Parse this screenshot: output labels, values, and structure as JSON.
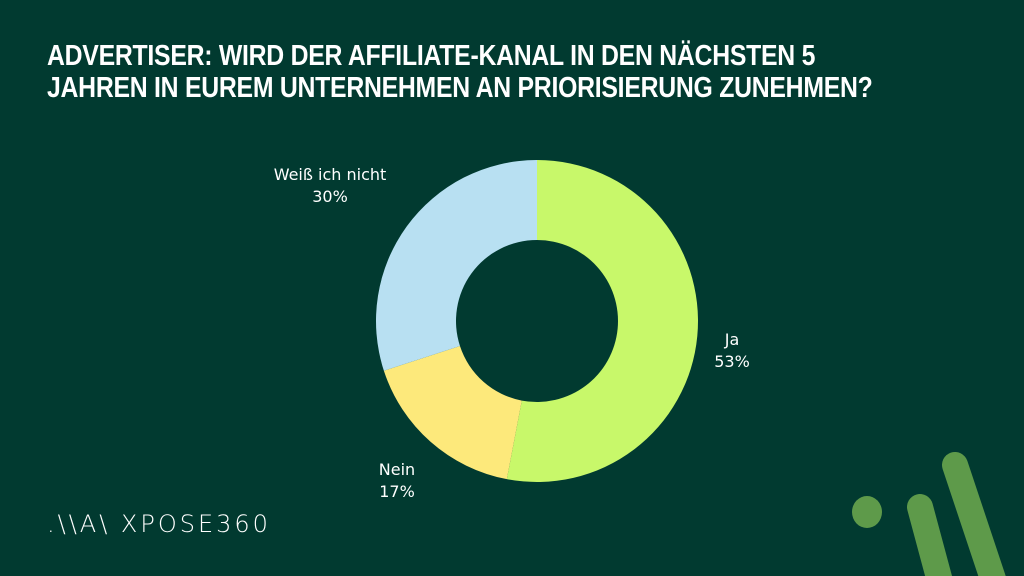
{
  "title_lines": [
    "ADVERTISER: WIRD DER AFFILIATE-KANAL IN DEN NÄCHSTEN 5",
    "JAHREN IN EUREM UNTERNEHMEN AN PRIORISIERUNG ZUNEHMEN?"
  ],
  "logo": ".\\\\A\\ XPOSE360",
  "colors": {
    "background": "#013a30",
    "decor": "#5e9a4a"
  },
  "chart_data": {
    "type": "pie",
    "donut": true,
    "title": "ADVERTISER: WIRD DER AFFILIATE-KANAL IN DEN NÄCHSTEN 5 JAHREN IN EUREM UNTERNEHMEN AN PRIORISIERUNG ZUNEHMEN?",
    "slices": [
      {
        "label": "Ja",
        "value": 53,
        "value_label": "53%",
        "color": "#c8f86a"
      },
      {
        "label": "Nein",
        "value": 17,
        "value_label": "17%",
        "color": "#fde97b"
      },
      {
        "label": "Weiß ich nicht",
        "value": 30,
        "value_label": "30%",
        "color": "#b8e0f2"
      }
    ]
  }
}
